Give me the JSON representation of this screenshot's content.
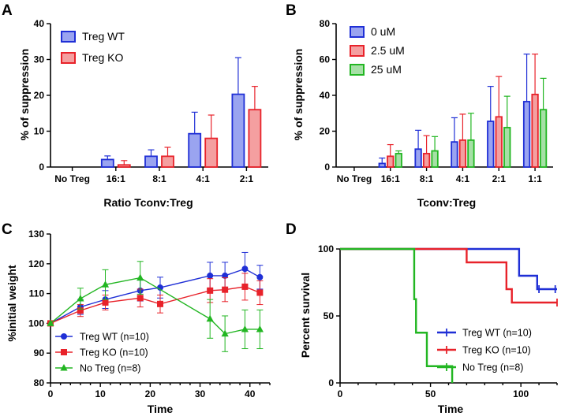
{
  "panels": {
    "a": "A",
    "b": "B",
    "c": "C",
    "d": "D"
  },
  "colors": {
    "blue": "#1f2fd6",
    "blue_fill": "#9aa4f0",
    "red": "#e8222a",
    "red_fill": "#f49fa0",
    "green": "#22b622",
    "green_fill": "#a6e0a6"
  },
  "chart_data": [
    {
      "id": "A",
      "type": "bar",
      "title": "",
      "xlabel": "Ratio Tconv:Treg",
      "ylabel": "% of suppression",
      "categories": [
        "No Treg",
        "16:1",
        "8:1",
        "4:1",
        "2:1"
      ],
      "ylim": [
        0,
        40
      ],
      "yticks": [
        0,
        10,
        20,
        30,
        40
      ],
      "legend_position": "top-left",
      "series": [
        {
          "name": "Treg WT",
          "color": "blue",
          "values": [
            0,
            2.1,
            3.0,
            9.3,
            20.3
          ],
          "errors": [
            0,
            1.0,
            1.8,
            6.0,
            10.2
          ]
        },
        {
          "name": "Treg KO",
          "color": "red",
          "values": [
            0,
            0.6,
            3.0,
            8.0,
            16.0
          ],
          "errors": [
            0,
            1.2,
            2.5,
            6.5,
            6.5
          ]
        }
      ]
    },
    {
      "id": "B",
      "type": "bar",
      "title": "",
      "xlabel": "Tconv:Treg",
      "ylabel": "% of suppression",
      "categories": [
        "No Treg",
        "16:1",
        "8:1",
        "4:1",
        "2:1",
        "1:1"
      ],
      "ylim": [
        0,
        80
      ],
      "yticks": [
        0,
        20,
        40,
        60,
        80
      ],
      "legend_position": "top-left",
      "series": [
        {
          "name": "0 uM",
          "color": "blue",
          "values": [
            0,
            2,
            10,
            14,
            25.5,
            36.5
          ],
          "errors": [
            0,
            3,
            10.5,
            13.5,
            19.5,
            26.5
          ]
        },
        {
          "name": "2.5 uM",
          "color": "red",
          "values": [
            0,
            6,
            7.5,
            15,
            28,
            40.5
          ],
          "errors": [
            0,
            6.5,
            10,
            14.5,
            22.5,
            22.5
          ]
        },
        {
          "name": "25 uM",
          "color": "green",
          "values": [
            0,
            7.5,
            9,
            15,
            22,
            32
          ],
          "errors": [
            0,
            1.5,
            8,
            15,
            17.5,
            17.5
          ]
        }
      ]
    },
    {
      "id": "C",
      "type": "line",
      "title": "",
      "xlabel": "Time",
      "ylabel": "%initial weight",
      "xlim": [
        0,
        44
      ],
      "xticks": [
        0,
        10,
        20,
        30,
        40
      ],
      "ylim": [
        80,
        130
      ],
      "yticks": [
        80,
        90,
        100,
        110,
        120,
        130
      ],
      "legend_position": "bottom-left",
      "series": [
        {
          "name": "Treg WT (n=10)",
          "color": "blue",
          "marker": "circle",
          "x": [
            0,
            6,
            11,
            18,
            22,
            32,
            35,
            39,
            42
          ],
          "y": [
            100,
            105.5,
            108,
            111,
            112,
            116,
            116,
            118.3,
            115.5
          ],
          "errors": [
            0,
            2.5,
            3,
            3.5,
            3.5,
            4.5,
            4.5,
            5.5,
            4
          ]
        },
        {
          "name": "Treg KO (n=10)",
          "color": "red",
          "marker": "square",
          "x": [
            0,
            6,
            11,
            18,
            22,
            32,
            35,
            39,
            42
          ],
          "y": [
            100,
            104.3,
            107,
            108.5,
            106.5,
            111,
            111.3,
            112.3,
            110.3
          ],
          "errors": [
            0,
            2,
            2.5,
            3,
            3,
            4,
            4,
            4.5,
            4
          ]
        },
        {
          "name": "No Treg (n=8)",
          "color": "green",
          "marker": "triangle",
          "x": [
            0,
            6,
            11,
            18,
            32,
            35,
            39,
            42
          ],
          "y": [
            100,
            108.3,
            113,
            115.3,
            101.5,
            96.5,
            98,
            98
          ],
          "errors": [
            0,
            3.5,
            5,
            5.5,
            6.5,
            6,
            6.5,
            6.5
          ]
        }
      ]
    },
    {
      "id": "D",
      "type": "line",
      "subtype": "survival",
      "title": "",
      "xlabel": "Time",
      "ylabel": "Percent survival",
      "xlim": [
        0,
        120
      ],
      "xticks": [
        0,
        50,
        100
      ],
      "ylim": [
        0,
        100
      ],
      "yticks": [
        0,
        50,
        100
      ],
      "legend_position": "bottom-right",
      "series": [
        {
          "name": "Treg WT (n=10)",
          "color": "blue",
          "steps": [
            [
              0,
              100
            ],
            [
              99,
              100
            ],
            [
              99,
              80
            ],
            [
              109,
              80
            ],
            [
              109,
              70
            ],
            [
              120,
              70
            ]
          ],
          "censored": [
            [
              110,
              70
            ],
            [
              119,
              70
            ]
          ]
        },
        {
          "name": "Treg KO (n=10)",
          "color": "red",
          "steps": [
            [
              0,
              100
            ],
            [
              70,
              100
            ],
            [
              70,
              90
            ],
            [
              92,
              90
            ],
            [
              92,
              70
            ],
            [
              95,
              70
            ],
            [
              95,
              60
            ],
            [
              120,
              60
            ]
          ],
          "censored": [
            [
              120,
              60
            ]
          ]
        },
        {
          "name": "No Treg (n=8)",
          "color": "green",
          "steps": [
            [
              0,
              100
            ],
            [
              41,
              100
            ],
            [
              41,
              62.5
            ],
            [
              42,
              62.5
            ],
            [
              42,
              37.5
            ],
            [
              48,
              37.5
            ],
            [
              48,
              12.5
            ],
            [
              62,
              12.5
            ],
            [
              62,
              0
            ]
          ],
          "censored": []
        }
      ]
    }
  ]
}
